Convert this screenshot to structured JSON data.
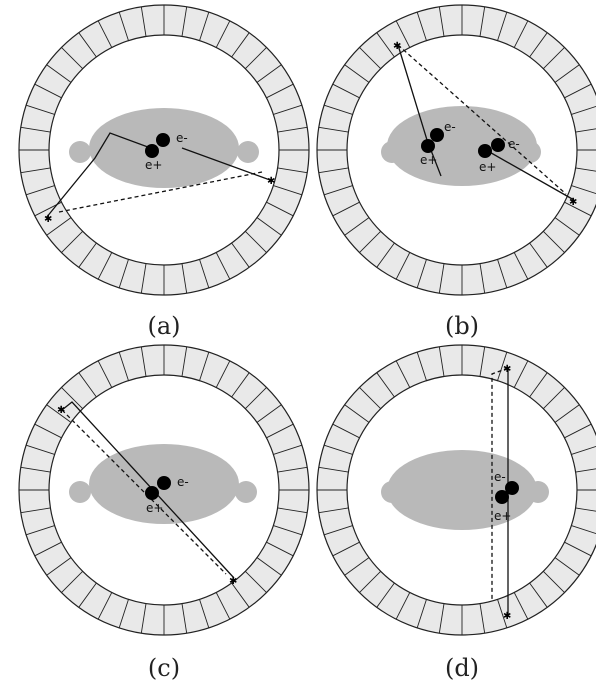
{
  "figure": {
    "panels": [
      {
        "id": "a",
        "caption": "(a)",
        "electron_label": "e-",
        "positron_label": "e+"
      },
      {
        "id": "b",
        "caption": "(b)",
        "electron_label": "e-",
        "positron_label": "e+"
      },
      {
        "id": "c",
        "caption": "(c)",
        "electron_label": "e-",
        "positron_label": "e+"
      },
      {
        "id": "d",
        "caption": "(d)",
        "electron_label": "e-",
        "positron_label": "e+"
      }
    ],
    "colors": {
      "ring_fill": "#e9e9e9",
      "ring_stroke": "#222222",
      "source_fill": "#b9b9b9",
      "particle": "#000000",
      "line": "#111111"
    }
  }
}
